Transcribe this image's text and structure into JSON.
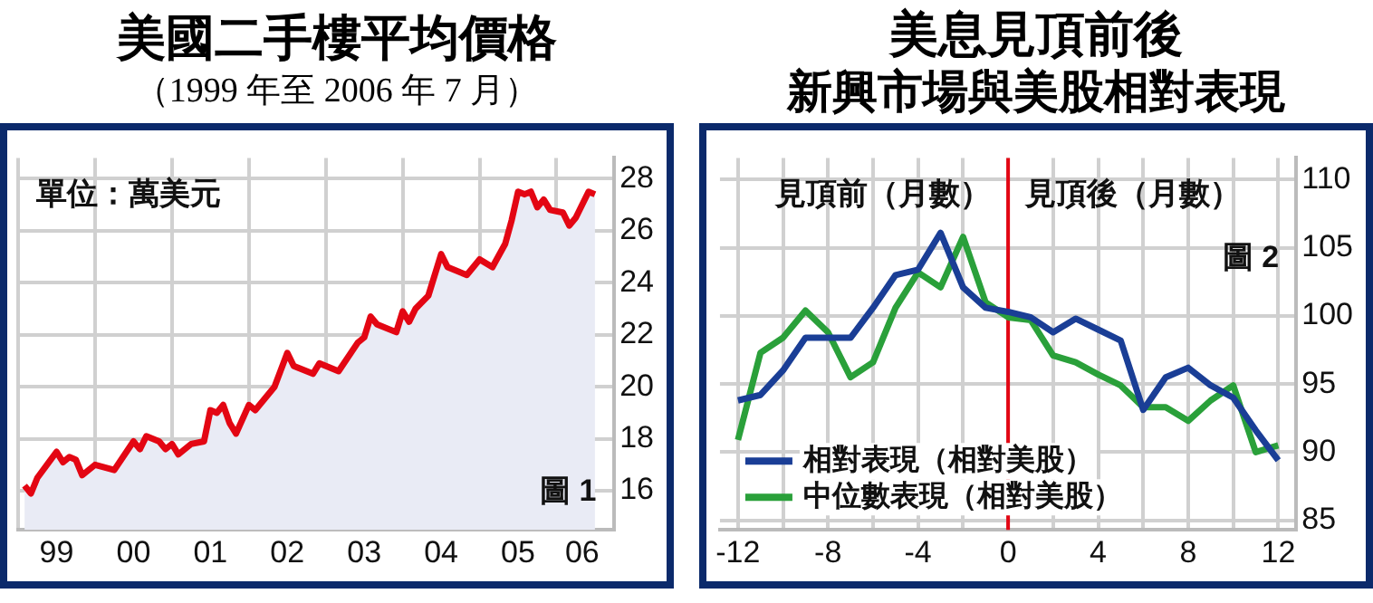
{
  "chart_data": [
    {
      "type": "area",
      "title": "美國二手樓平均價格",
      "subtitle": "（1999 年至 2006 年 7 月）",
      "annotations": [
        "單位：萬美元",
        "圖 1"
      ],
      "x": [
        "1999-02",
        "1999-03",
        "1999-04",
        "1999-07",
        "1999-08",
        "1999-09",
        "1999-10",
        "1999-11",
        "2000-01",
        "2000-04",
        "2000-07",
        "2000-08",
        "2000-09",
        "2000-11",
        "2000-12",
        "2001-01",
        "2001-02",
        "2001-04",
        "2001-06",
        "2001-07",
        "2001-08",
        "2001-09",
        "2001-10",
        "2001-11",
        "2002-01",
        "2002-02",
        "2002-05",
        "2002-07",
        "2002-08",
        "2002-11",
        "2002-12",
        "2003-03",
        "2003-06",
        "2003-07",
        "2003-08",
        "2003-09",
        "2003-12",
        "2004-01",
        "2004-02",
        "2004-03",
        "2004-05",
        "2004-07",
        "2004-08",
        "2004-11",
        "2005-01",
        "2005-03",
        "2005-05",
        "2005-06",
        "2005-07",
        "2005-08",
        "2005-09",
        "2005-10",
        "2005-11",
        "2005-12",
        "2006-02",
        "2006-03",
        "2006-04",
        "2006-06",
        "2006-07"
      ],
      "series": [
        {
          "color": "#e30613",
          "values": [
            16.2,
            15.9,
            16.5,
            17.5,
            17.1,
            17.3,
            17.2,
            16.6,
            17.0,
            16.8,
            17.9,
            17.6,
            18.1,
            17.9,
            17.6,
            17.8,
            17.4,
            17.8,
            17.9,
            19.1,
            19.0,
            19.3,
            18.6,
            18.2,
            19.3,
            19.1,
            20.0,
            21.3,
            20.8,
            20.5,
            20.9,
            20.6,
            21.7,
            21.9,
            22.7,
            22.4,
            22.1,
            22.9,
            22.5,
            23.0,
            23.5,
            25.1,
            24.6,
            24.3,
            24.9,
            24.6,
            25.5,
            26.4,
            27.5,
            27.4,
            27.5,
            26.9,
            27.2,
            26.8,
            26.7,
            26.2,
            26.5,
            27.5,
            27.4
          ]
        }
      ],
      "xlim": [
        "1999-01",
        "2006-10"
      ],
      "ylim": [
        14.5,
        28.8
      ],
      "xticks": [
        {
          "value": "1999-01",
          "label": null
        },
        {
          "value": "1999-07",
          "label": "99"
        },
        {
          "value": "2000-01",
          "label": null
        },
        {
          "value": "2000-07",
          "label": "00"
        },
        {
          "value": "2001-01",
          "label": null
        },
        {
          "value": "2001-07",
          "label": "01"
        },
        {
          "value": "2002-01",
          "label": null
        },
        {
          "value": "2002-07",
          "label": "02"
        },
        {
          "value": "2003-01",
          "label": null
        },
        {
          "value": "2003-07",
          "label": "03"
        },
        {
          "value": "2004-01",
          "label": null
        },
        {
          "value": "2004-07",
          "label": "04"
        },
        {
          "value": "2005-01",
          "label": null
        },
        {
          "value": "2005-07",
          "label": "05"
        },
        {
          "value": "2006-01",
          "label": null
        },
        {
          "value": "2006-05",
          "label": "06"
        }
      ],
      "yticks": [
        16,
        18,
        20,
        22,
        24,
        26,
        28
      ],
      "grid": true,
      "legend": false
    },
    {
      "type": "line",
      "title": "美息見頂前後",
      "subtitle": "新興市場與美股相對表現",
      "annotations": [
        "見頂前（月數）",
        "見頂後（月數）",
        "圖 2"
      ],
      "x": [
        -12,
        -11,
        -10,
        -9,
        -8,
        -7,
        -6,
        -5,
        -4,
        -3,
        -2,
        -1,
        0,
        1,
        2,
        3,
        4,
        5,
        6,
        7,
        8,
        9,
        10,
        11,
        12
      ],
      "series": [
        {
          "name": "相對表現（相對美股）",
          "color": "#1a3e96",
          "values": [
            93.8,
            94.2,
            96.0,
            98.4,
            98.4,
            98.4,
            100.6,
            103.0,
            103.4,
            106.1,
            102.1,
            100.6,
            100.3,
            99.9,
            98.8,
            99.8,
            99.0,
            98.2,
            93.1,
            95.5,
            96.2,
            94.9,
            94.0,
            91.6,
            89.4
          ]
        },
        {
          "name": "中位數表現（相對美股）",
          "color": "#2aa03a",
          "values": [
            90.9,
            97.3,
            98.4,
            100.4,
            98.8,
            95.5,
            96.6,
            100.6,
            103.2,
            102.1,
            105.8,
            101.0,
            99.9,
            99.7,
            97.1,
            96.6,
            95.7,
            94.9,
            93.3,
            93.3,
            92.3,
            93.8,
            94.9,
            90.0,
            90.5
          ]
        }
      ],
      "xlim": [
        -12.8,
        12.8
      ],
      "ylim": [
        84.3,
        111.6
      ],
      "xticks": [
        -12,
        {
          "value": -10,
          "label": null
        },
        -8,
        {
          "value": -6,
          "label": null
        },
        -4,
        {
          "value": -2,
          "label": null
        },
        0,
        {
          "value": 2,
          "label": null
        },
        4,
        {
          "value": 6,
          "label": null
        },
        8,
        {
          "value": 10,
          "label": null
        },
        12
      ],
      "yticks": [
        85,
        90,
        95,
        100,
        105,
        110
      ],
      "grid": true,
      "legend": "bottom left",
      "ref_lines": [
        {
          "axis": "x",
          "value": 0,
          "color": "#e30613"
        }
      ]
    }
  ]
}
